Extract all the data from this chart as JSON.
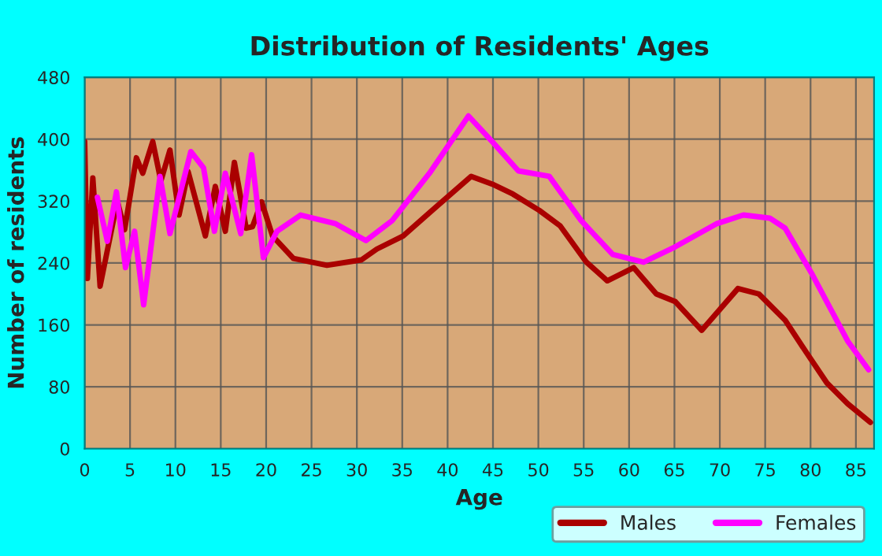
{
  "chart_data": {
    "type": "line",
    "title": "Distribution of Residents' Ages",
    "xlabel": "Age",
    "ylabel": "Number of residents",
    "xlim": [
      0,
      87
    ],
    "xticks": [
      0,
      5,
      10,
      15,
      20,
      25,
      30,
      35,
      40,
      45,
      50,
      55,
      60,
      65,
      70,
      75,
      80,
      85
    ],
    "ylim": [
      0,
      480
    ],
    "yticks": [
      0,
      80,
      160,
      240,
      320,
      400,
      480
    ],
    "grid": true,
    "legend": "bottom right",
    "line_style": "solid",
    "marker": "none",
    "series": [
      {
        "name": "Males",
        "color": "#aa0000",
        "x": [
          0,
          0.3,
          0.9,
          1.7,
          3.6,
          4.4,
          5.7,
          6.4,
          7.5,
          8.4,
          9.4,
          10.4,
          11.4,
          13.3,
          14.4,
          15.5,
          16.5,
          17.8,
          18.5,
          19.5,
          20.7,
          23,
          26.7,
          30.5,
          32.2,
          35.1,
          38,
          42.6,
          44.9,
          47.2,
          50.1,
          52.4,
          55.3,
          57.6,
          60.5,
          63,
          65.1,
          68,
          72,
          74.3,
          77.2,
          79.5,
          81.8,
          84.1,
          86.6
        ],
        "values": [
          397,
          220,
          350,
          210,
          320,
          283,
          376,
          356,
          397,
          346,
          386,
          302,
          358,
          275,
          339,
          281,
          370,
          285,
          287,
          319,
          275,
          246,
          237,
          244,
          258,
          275,
          305,
          352,
          342,
          329,
          308,
          288,
          241,
          217,
          234,
          200,
          190,
          153,
          207,
          200,
          166,
          125,
          85,
          58,
          34
        ]
      },
      {
        "name": "Females",
        "color": "#ff00ff",
        "x": [
          1.4,
          2.5,
          3.5,
          4.5,
          5.5,
          6.5,
          8.3,
          9.4,
          11.7,
          13.1,
          14.3,
          15.5,
          17.2,
          18.4,
          19.7,
          21.2,
          23.8,
          27.6,
          31,
          33.9,
          38,
          42.3,
          44.9,
          47.8,
          51.2,
          54.7,
          58.2,
          61.6,
          65.1,
          69.7,
          72.6,
          75.5,
          77.2,
          80.1,
          84.1,
          86.4
        ],
        "values": [
          325,
          268,
          332,
          234,
          281,
          186,
          352,
          278,
          384,
          363,
          281,
          356,
          278,
          380,
          247,
          281,
          302,
          291,
          269,
          295,
          356,
          430,
          397,
          359,
          352,
          295,
          251,
          241,
          261,
          291,
          302,
          298,
          285,
          227,
          139,
          102
        ]
      }
    ]
  }
}
